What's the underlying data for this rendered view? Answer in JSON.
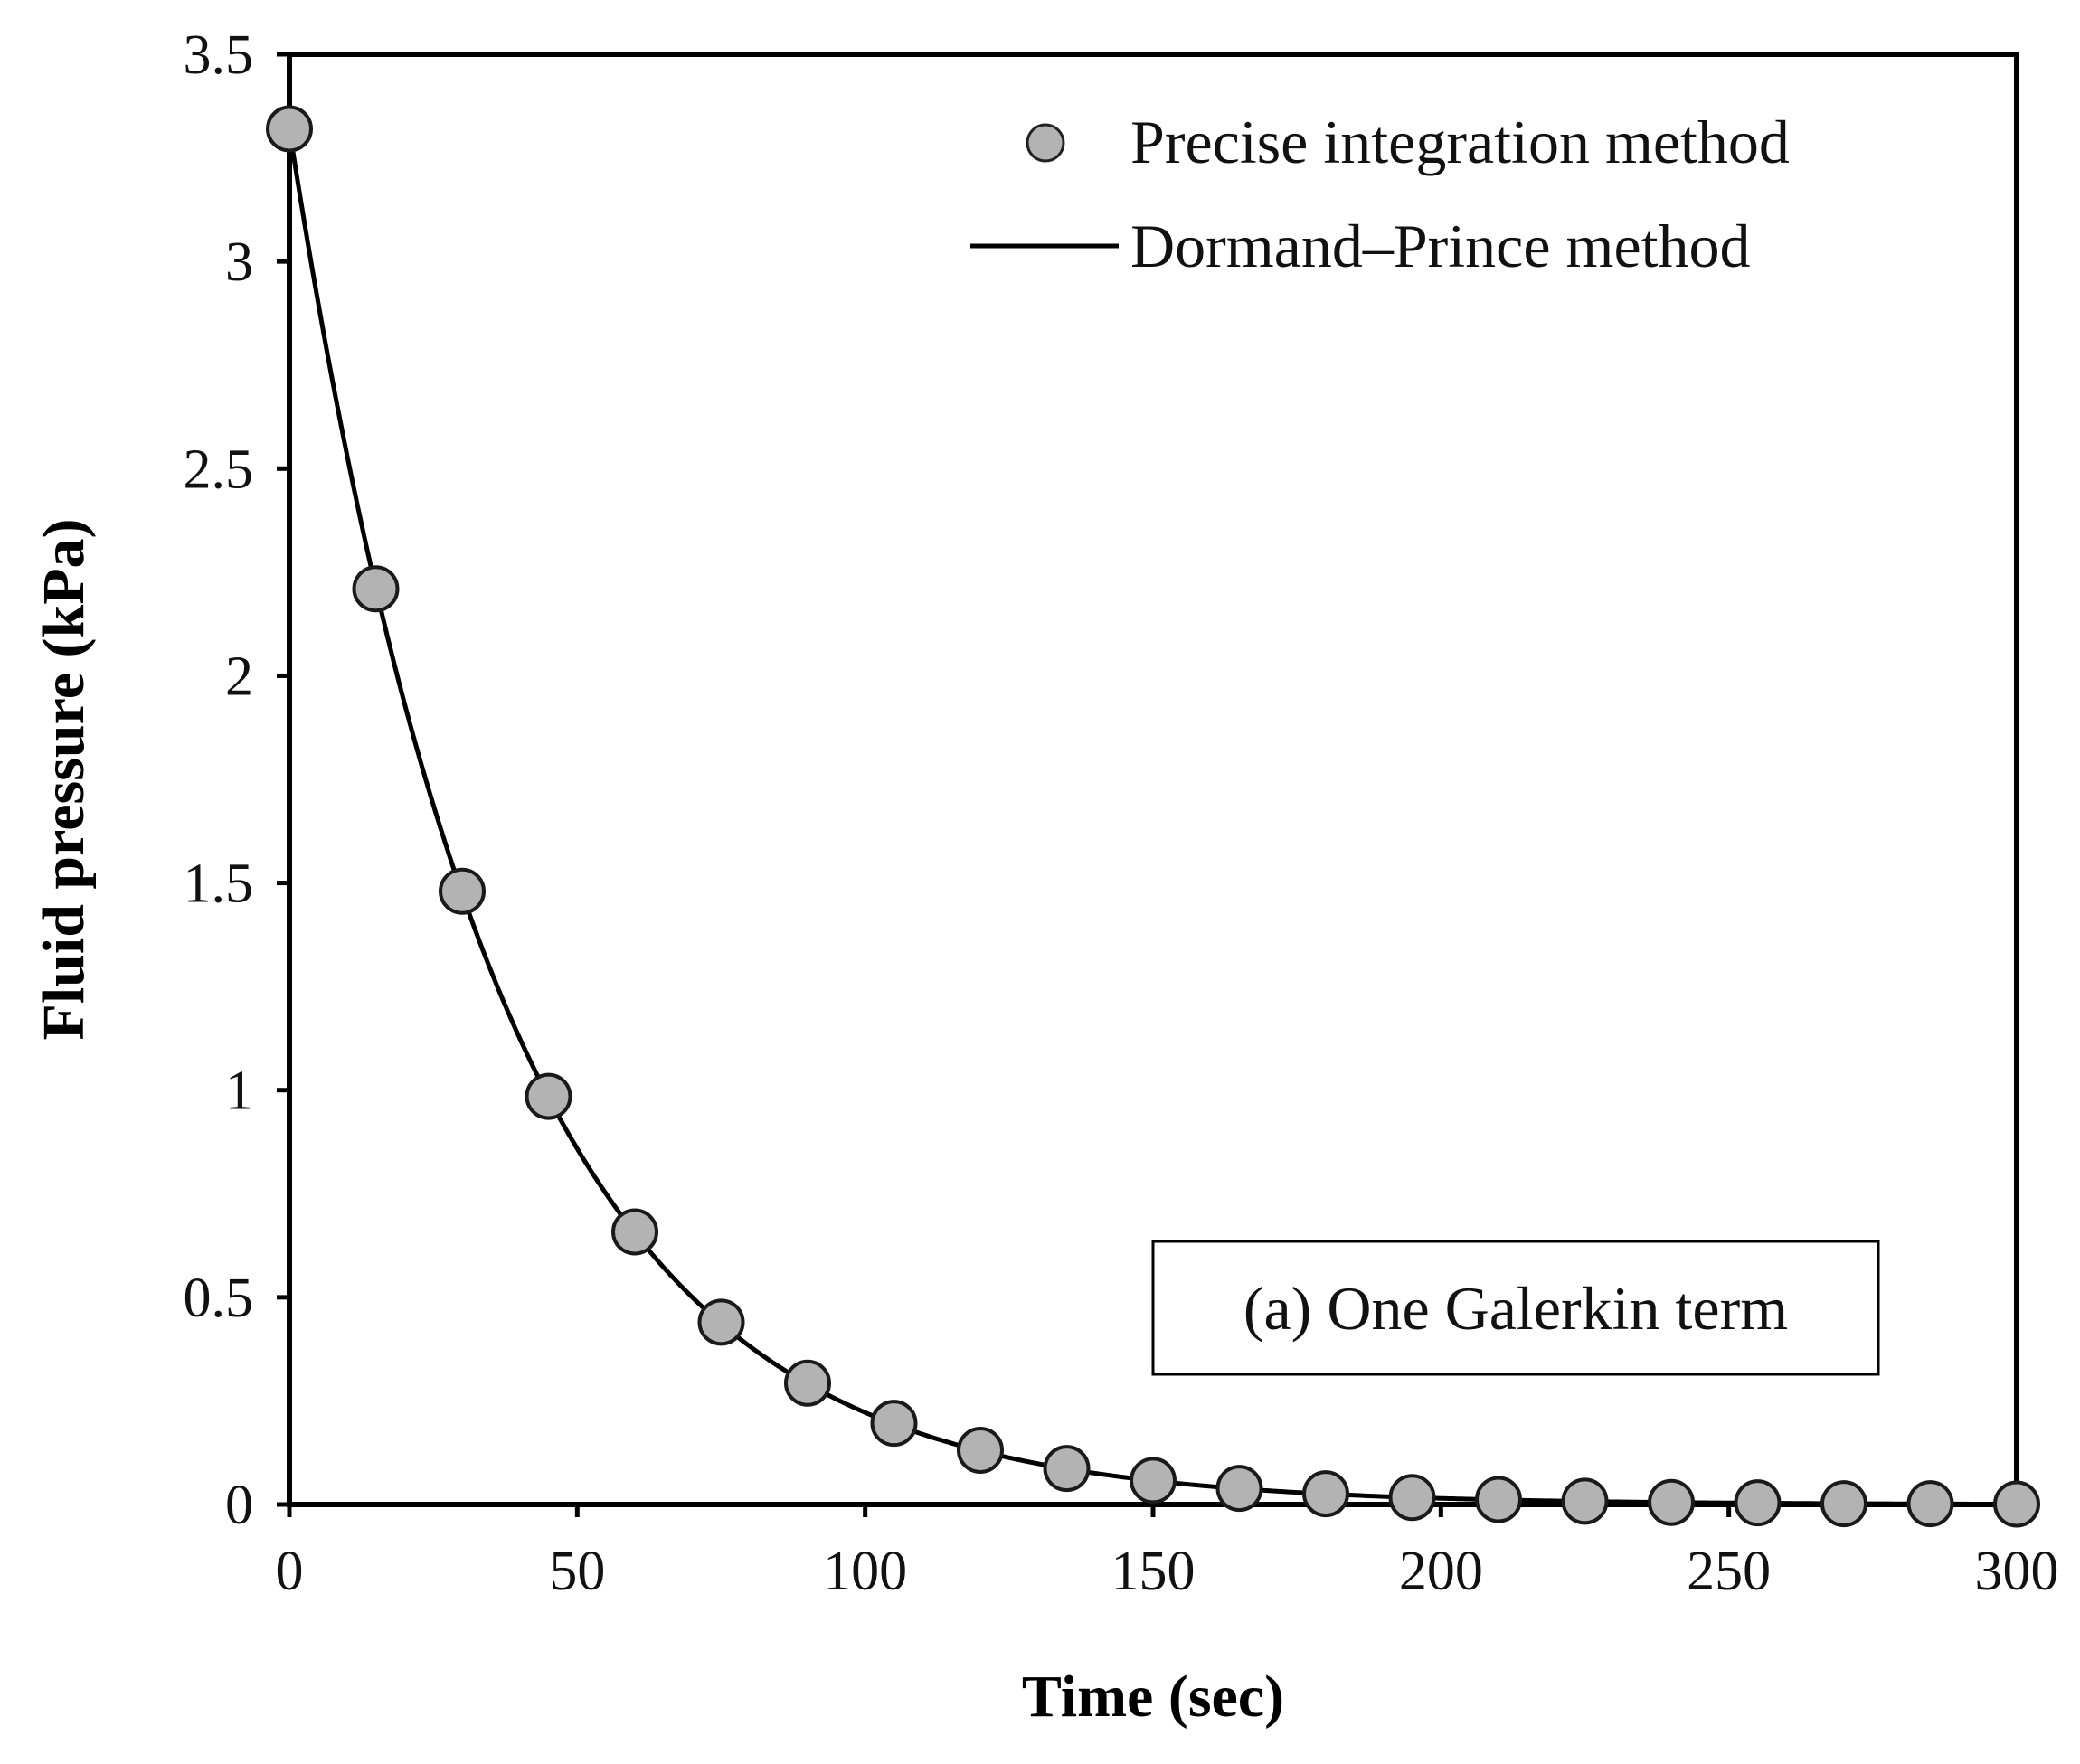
{
  "chart_data": {
    "type": "line",
    "title": "",
    "xlabel": "Time (sec)",
    "ylabel": "Fluid pressure (kPa)",
    "xlim": [
      0,
      300
    ],
    "ylim": [
      0,
      3.5
    ],
    "xticks": [
      0,
      50,
      100,
      150,
      200,
      250,
      300
    ],
    "xtick_labels": [
      "0",
      "50",
      "100",
      "150",
      "200",
      "250",
      "300"
    ],
    "yticks": [
      0,
      0.5,
      1,
      1.5,
      2,
      2.5,
      3,
      3.5
    ],
    "ytick_labels": [
      "0",
      "0.5",
      "1",
      "1.5",
      "2",
      "2.5",
      "3",
      "3.5"
    ],
    "grid": false,
    "legend_position": "top-right",
    "annotation": "(a) One Galerkin term",
    "series": [
      {
        "name": "Precise integration method",
        "style": "markers",
        "color": "#b3b3b3",
        "x": [
          0,
          15,
          30,
          45,
          60,
          75,
          90,
          105,
          120,
          135,
          150,
          165,
          180,
          195,
          210,
          225,
          240,
          255,
          270,
          285,
          300
        ],
        "values": [
          3.32,
          2.21,
          1.48,
          0.985,
          0.658,
          0.44,
          0.293,
          0.196,
          0.131,
          0.087,
          0.058,
          0.039,
          0.026,
          0.017,
          0.012,
          0.008,
          0.005,
          0.004,
          0.002,
          0.002,
          0.001
        ]
      },
      {
        "name": "Dormand–Prince method",
        "style": "line",
        "color": "#000000",
        "function": "exp_decay",
        "y0": 3.32,
        "rate": 0.02705,
        "x_range": [
          0,
          300
        ]
      }
    ]
  }
}
